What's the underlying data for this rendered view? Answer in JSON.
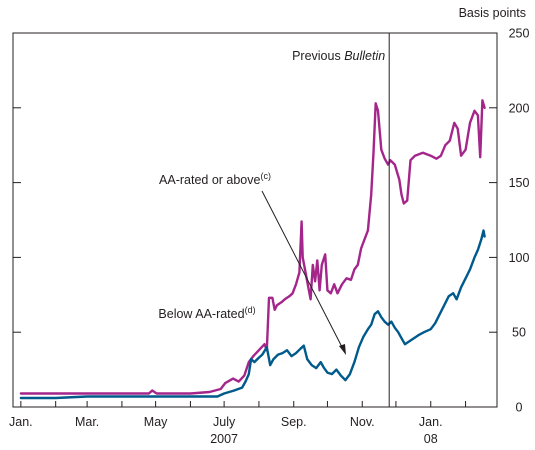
{
  "chart_data": {
    "type": "line",
    "units_label": "Basis points",
    "ylim": [
      0,
      250
    ],
    "ytick_values": [
      0,
      50,
      100,
      150,
      200,
      250
    ],
    "ytick_labels": [
      "0",
      "50",
      "100",
      "150",
      "200",
      "250"
    ],
    "xlim": [
      "2006-12-25",
      "2008-02-29"
    ],
    "x_ticks": [
      {
        "date": "2007-01-01",
        "label": "Jan."
      },
      {
        "date": "2007-03-01",
        "label": "Mar."
      },
      {
        "date": "2007-05-01",
        "label": "May"
      },
      {
        "date": "2007-07-01",
        "label": "July"
      },
      {
        "date": "2007-09-01",
        "label": "Sep."
      },
      {
        "date": "2007-11-01",
        "label": "Nov."
      },
      {
        "date": "2008-01-01",
        "label": "Jan."
      }
    ],
    "year_labels": [
      {
        "date": "2007-07-01",
        "label": "2007"
      },
      {
        "date": "2008-01-01",
        "label": "08"
      }
    ],
    "grid": false,
    "legend": "none",
    "vertical_line": {
      "date": "2007-11-25",
      "label_plain": "Previous ",
      "label_italic": "Bulletin"
    },
    "annotations": [
      {
        "label": "AA-rated or above",
        "superscript": "(c)",
        "series": "AA-rated or above"
      },
      {
        "label": "Below AA-rated",
        "superscript": "(d)",
        "series": "Below AA-rated"
      }
    ],
    "series": [
      {
        "name": "AA-rated or above",
        "color": "#a4268b",
        "points": [
          [
            "2007-01-01",
            9
          ],
          [
            "2007-02-01",
            9
          ],
          [
            "2007-03-01",
            9
          ],
          [
            "2007-04-01",
            9
          ],
          [
            "2007-04-25",
            9
          ],
          [
            "2007-04-28",
            11
          ],
          [
            "2007-05-02",
            9
          ],
          [
            "2007-06-01",
            9
          ],
          [
            "2007-06-18",
            10
          ],
          [
            "2007-06-28",
            12
          ],
          [
            "2007-07-02",
            16
          ],
          [
            "2007-07-09",
            19
          ],
          [
            "2007-07-14",
            17
          ],
          [
            "2007-07-19",
            21
          ],
          [
            "2007-07-23",
            30
          ],
          [
            "2007-07-27",
            34
          ],
          [
            "2007-08-01",
            38
          ],
          [
            "2007-08-06",
            42
          ],
          [
            "2007-08-08",
            38
          ],
          [
            "2007-08-10",
            73
          ],
          [
            "2007-08-13",
            73
          ],
          [
            "2007-08-15",
            65
          ],
          [
            "2007-08-17",
            68
          ],
          [
            "2007-08-21",
            70
          ],
          [
            "2007-08-24",
            72
          ],
          [
            "2007-08-28",
            74
          ],
          [
            "2007-08-31",
            76
          ],
          [
            "2007-09-03",
            82
          ],
          [
            "2007-09-06",
            90
          ],
          [
            "2007-09-08",
            124
          ],
          [
            "2007-09-09",
            100
          ],
          [
            "2007-09-12",
            88
          ],
          [
            "2007-09-14",
            80
          ],
          [
            "2007-09-16",
            72
          ],
          [
            "2007-09-18",
            95
          ],
          [
            "2007-09-20",
            84
          ],
          [
            "2007-09-22",
            98
          ],
          [
            "2007-09-24",
            78
          ],
          [
            "2007-09-26",
            95
          ],
          [
            "2007-09-29",
            102
          ],
          [
            "2007-10-01",
            78
          ],
          [
            "2007-10-04",
            76
          ],
          [
            "2007-10-07",
            82
          ],
          [
            "2007-10-10",
            76
          ],
          [
            "2007-10-14",
            82
          ],
          [
            "2007-10-18",
            86
          ],
          [
            "2007-10-22",
            85
          ],
          [
            "2007-10-25",
            92
          ],
          [
            "2007-10-28",
            95
          ],
          [
            "2007-10-31",
            106
          ],
          [
            "2007-11-03",
            112
          ],
          [
            "2007-11-06",
            118
          ],
          [
            "2007-11-09",
            142
          ],
          [
            "2007-11-11",
            170
          ],
          [
            "2007-11-13",
            203
          ],
          [
            "2007-11-15",
            198
          ],
          [
            "2007-11-18",
            172
          ],
          [
            "2007-11-21",
            166
          ],
          [
            "2007-11-24",
            162
          ],
          [
            "2007-11-26",
            165
          ],
          [
            "2007-11-30",
            162
          ],
          [
            "2007-12-04",
            152
          ],
          [
            "2007-12-06",
            142
          ],
          [
            "2007-12-08",
            136
          ],
          [
            "2007-12-11",
            138
          ],
          [
            "2007-12-14",
            165
          ],
          [
            "2007-12-18",
            168
          ],
          [
            "2007-12-25",
            170
          ],
          [
            "2008-01-01",
            168
          ],
          [
            "2008-01-06",
            166
          ],
          [
            "2008-01-10",
            168
          ],
          [
            "2008-01-14",
            175
          ],
          [
            "2008-01-18",
            178
          ],
          [
            "2008-01-22",
            190
          ],
          [
            "2008-01-25",
            186
          ],
          [
            "2008-01-28",
            168
          ],
          [
            "2008-02-01",
            172
          ],
          [
            "2008-02-05",
            190
          ],
          [
            "2008-02-09",
            198
          ],
          [
            "2008-02-12",
            195
          ],
          [
            "2008-02-14",
            167
          ],
          [
            "2008-02-16",
            205
          ],
          [
            "2008-02-18",
            200
          ]
        ]
      },
      {
        "name": "Below AA-rated",
        "color": "#005a8b",
        "points": [
          [
            "2007-01-01",
            6
          ],
          [
            "2007-02-01",
            6
          ],
          [
            "2007-03-01",
            7
          ],
          [
            "2007-04-01",
            7
          ],
          [
            "2007-05-01",
            7
          ],
          [
            "2007-06-01",
            7
          ],
          [
            "2007-06-25",
            7
          ],
          [
            "2007-07-01",
            9
          ],
          [
            "2007-07-10",
            11
          ],
          [
            "2007-07-17",
            13
          ],
          [
            "2007-07-20",
            17
          ],
          [
            "2007-07-23",
            22
          ],
          [
            "2007-07-25",
            32
          ],
          [
            "2007-07-28",
            30
          ],
          [
            "2007-08-01",
            33
          ],
          [
            "2007-08-04",
            35
          ],
          [
            "2007-08-08",
            40
          ],
          [
            "2007-08-11",
            28
          ],
          [
            "2007-08-14",
            32
          ],
          [
            "2007-08-18",
            35
          ],
          [
            "2007-08-22",
            36
          ],
          [
            "2007-08-26",
            38
          ],
          [
            "2007-08-30",
            34
          ],
          [
            "2007-09-03",
            36
          ],
          [
            "2007-09-07",
            39
          ],
          [
            "2007-09-10",
            41
          ],
          [
            "2007-09-13",
            32
          ],
          [
            "2007-09-17",
            28
          ],
          [
            "2007-09-21",
            26
          ],
          [
            "2007-09-25",
            30
          ],
          [
            "2007-09-28",
            26
          ],
          [
            "2007-10-01",
            23
          ],
          [
            "2007-10-05",
            22
          ],
          [
            "2007-10-09",
            25
          ],
          [
            "2007-10-13",
            21
          ],
          [
            "2007-10-17",
            18
          ],
          [
            "2007-10-21",
            22
          ],
          [
            "2007-10-25",
            30
          ],
          [
            "2007-10-29",
            40
          ],
          [
            "2007-11-02",
            47
          ],
          [
            "2007-11-06",
            52
          ],
          [
            "2007-11-09",
            55
          ],
          [
            "2007-11-12",
            62
          ],
          [
            "2007-11-15",
            64
          ],
          [
            "2007-11-18",
            60
          ],
          [
            "2007-11-21",
            57
          ],
          [
            "2007-11-24",
            55
          ],
          [
            "2007-11-27",
            57
          ],
          [
            "2007-11-30",
            53
          ],
          [
            "2007-12-03",
            50
          ],
          [
            "2007-12-06",
            46
          ],
          [
            "2007-12-09",
            42
          ],
          [
            "2007-12-13",
            44
          ],
          [
            "2007-12-17",
            46
          ],
          [
            "2007-12-21",
            48
          ],
          [
            "2007-12-26",
            50
          ],
          [
            "2008-01-01",
            52
          ],
          [
            "2008-01-05",
            56
          ],
          [
            "2008-01-09",
            62
          ],
          [
            "2008-01-13",
            68
          ],
          [
            "2008-01-17",
            74
          ],
          [
            "2008-01-21",
            76
          ],
          [
            "2008-01-24",
            72
          ],
          [
            "2008-01-28",
            80
          ],
          [
            "2008-02-01",
            86
          ],
          [
            "2008-02-05",
            92
          ],
          [
            "2008-02-09",
            100
          ],
          [
            "2008-02-12",
            105
          ],
          [
            "2008-02-15",
            112
          ],
          [
            "2008-02-17",
            118
          ],
          [
            "2008-02-18",
            114
          ]
        ]
      }
    ]
  }
}
